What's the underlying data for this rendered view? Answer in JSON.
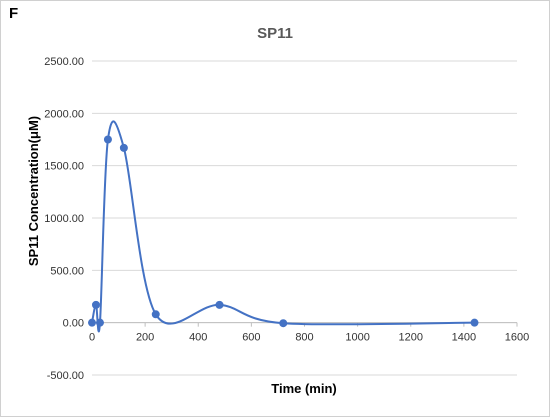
{
  "panel_label": "F",
  "chart_data": {
    "type": "line",
    "title": "SP11",
    "xlabel": "Time (min)",
    "ylabel": "SP11  Concentration(μM)",
    "xlim": [
      0,
      1600
    ],
    "ylim": [
      -500,
      2500
    ],
    "x_ticks": [
      "0",
      "200",
      "400",
      "600",
      "800",
      "1000",
      "1200",
      "1400",
      "1600"
    ],
    "y_ticks": [
      "-500.00",
      "0.00",
      "500.00",
      "1000.00",
      "1500.00",
      "2000.00",
      "2500.00"
    ],
    "grid": "horizontal",
    "legend": "none",
    "series_color": "#4472C4",
    "series": [
      {
        "x": [
          0,
          15,
          30,
          60,
          120,
          240,
          480,
          720,
          1440
        ],
        "y": [
          0,
          170,
          0,
          1750,
          1670,
          80,
          170,
          -5,
          0
        ]
      }
    ]
  }
}
